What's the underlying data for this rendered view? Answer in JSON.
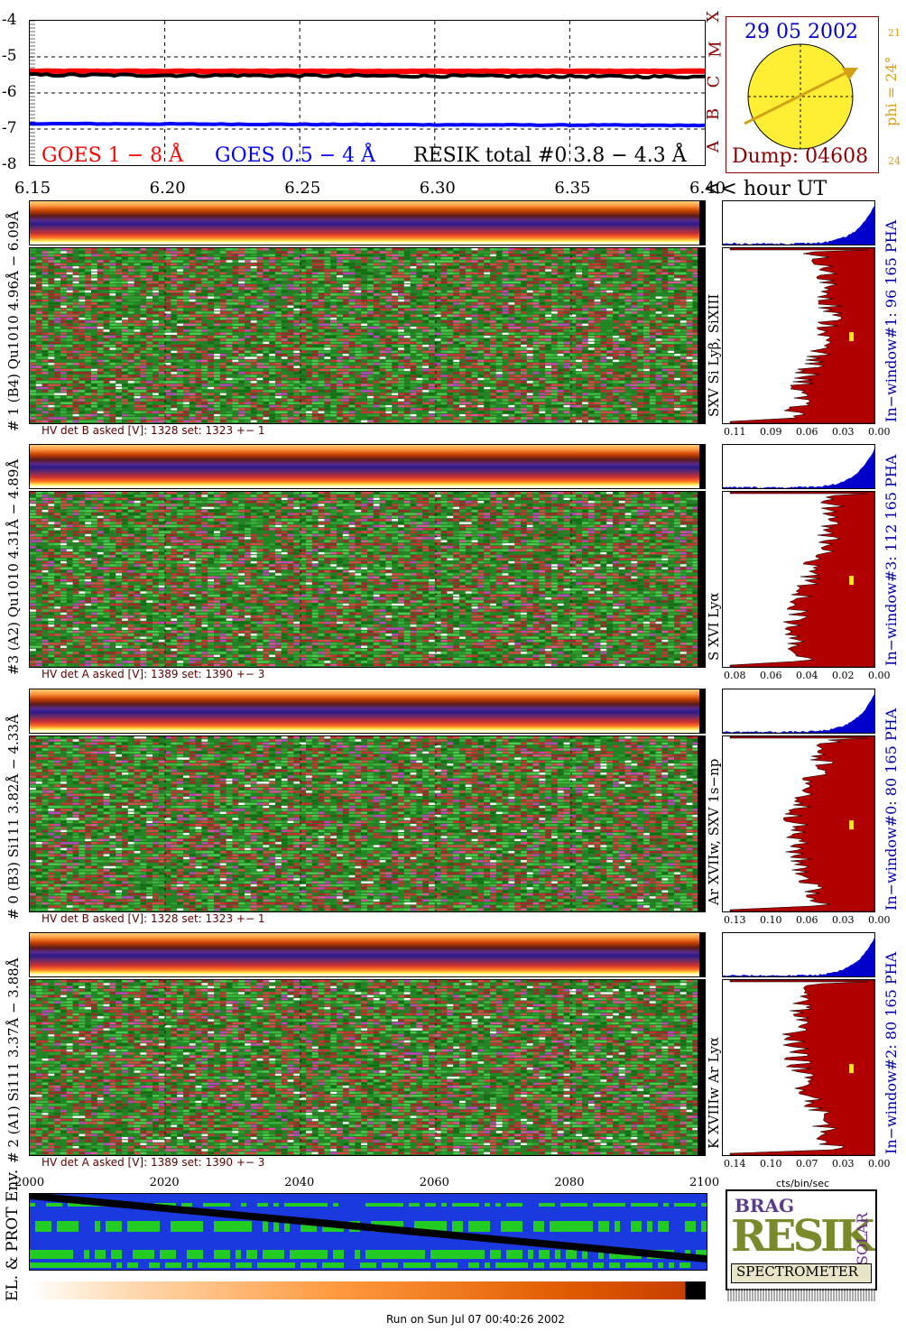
{
  "goes_plot": {
    "y_ticks": [
      "-4",
      "-5",
      "-6",
      "-7",
      "-8"
    ],
    "class_letters": [
      "X",
      "M",
      "C",
      "B",
      "A"
    ],
    "legend_goes1": "GOES 1 − 8 Å",
    "legend_goes2": "GOES 0.5 − 4 Å",
    "legend_resik": "RESIK total #0  3.8 − 4.3 Å",
    "x_ticks": [
      "6.15",
      "6.20",
      "6.25",
      "6.30",
      "6.35",
      "6.40"
    ],
    "x_unit": "<< hour UT",
    "colors": {
      "goes1": "#ff0000",
      "goes2": "#0000ff",
      "resik": "#000000"
    }
  },
  "sun_panel": {
    "date": "29 05 2002",
    "phi_label": "phi = 24°",
    "tick_top": "21",
    "tick_bottom": "24",
    "dump": "Dump: 04608",
    "colors": {
      "disk": "#ffee33",
      "arrow": "#d4a017",
      "date": "#0000cc",
      "dump": "#8b0000"
    }
  },
  "detectors": [
    {
      "label": "# 1 (B4) Qu1010  4.96Å − 6.09Å",
      "lines": "SXV Si Lyβ, SiXIII",
      "hv": "HV det B asked [V]:  1328  set:  1323  +−   1",
      "window": "In−window#1:  96 165  PHA",
      "pha_ticks": [
        "0.11",
        "0.09",
        "0.06",
        "0.03",
        "0.00"
      ]
    },
    {
      "label": "#3 (A2) Qu1010  4.31Å − 4.89Å",
      "lines": "S XVI Lyα",
      "hv": "HV det A asked [V]:  1389  set:  1390  +−   3",
      "window": "In−window#3:  112 165  PHA",
      "pha_ticks": [
        "0.08",
        "0.06",
        "0.04",
        "0.02",
        "0.00"
      ]
    },
    {
      "label": "# 0 (B3) Si111  3.82Å − 4.33Å",
      "lines": "Ar XVIIw, SXV 1s−np",
      "hv": "HV det B asked [V]:  1328  set:  1323  +−   1",
      "window": "In−window#0:  80 165  PHA",
      "pha_ticks": [
        "0.13",
        "0.10",
        "0.06",
        "0.03",
        "0.00"
      ]
    },
    {
      "label": "# 2 (A1) Si111  3.37Å − 3.88Å",
      "lines": "K XVIIIw   Ar Lyα",
      "hv": "HV det A asked [V]:  1389  set:  1390  +−   3",
      "window": "In−window#2:  80 165  PHA",
      "pha_ticks": [
        "0.14",
        "0.10",
        "0.07",
        "0.03",
        "0.00"
      ]
    }
  ],
  "bottom_axis": {
    "ticks": [
      "2000",
      "2020",
      "2040",
      "2060",
      "2080",
      "2100"
    ],
    "pha_unit": "cts/bin/sec",
    "env_label": "EL. & PROT Env."
  },
  "logo": {
    "line1": "BRAG",
    "line2": "RESIK",
    "line3": "SOLAR",
    "bottom": "SPECTROMETER"
  },
  "footer": "Run on Sun Jul 07 00:40:26 2002",
  "chart_data": [
    {
      "type": "line",
      "x": [
        6.15,
        6.4
      ],
      "xlim": [
        6.15,
        6.4
      ],
      "ylim": [
        -8,
        -4
      ],
      "series": [
        {
          "name": "GOES 1 − 8 Å",
          "values": [
            -5.4,
            -5.4
          ]
        },
        {
          "name": "GOES 0.5 − 4 Å",
          "values": [
            -6.85,
            -6.9
          ]
        },
        {
          "name": "RESIK total #0  3.8 − 4.3 Å",
          "values": [
            -5.5,
            -5.55
          ]
        }
      ],
      "grid": true
    },
    {
      "type": "heatmap",
      "xlim": [
        2000,
        2100
      ]
    }
  ]
}
